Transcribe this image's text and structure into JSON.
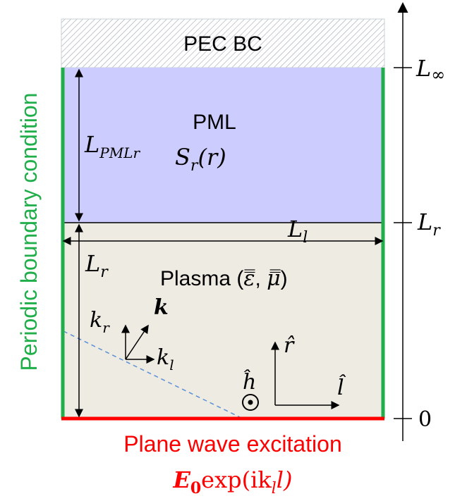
{
  "colors": {
    "pml_fill": "#ccccff",
    "plasma_fill": "#eeebe2",
    "periodic_green": "#1fae4a",
    "excitation_red": "#ff0000",
    "hatch": "#9aa6b0",
    "dashed_wave": "#5b8fd6"
  },
  "labels": {
    "pec": "PEC BC",
    "pml_title": "PML",
    "pml_thickness": "L",
    "pml_thickness_sub": "PMLr",
    "stretch": "S",
    "stretch_sub": "r",
    "stretch_arg": "(r)",
    "plasma": "Plasma (",
    "plasma_eps": "ε̿",
    "plasma_mu": "μ̿",
    "plasma_close": ")",
    "l_width": "L",
    "l_width_sub": "l",
    "l_height": "L",
    "l_height_sub": "r",
    "k_vec": "k",
    "k_r": "k",
    "k_r_sub": "r",
    "k_l": "k",
    "k_l_sub": "l",
    "unit_r": "r̂",
    "unit_l": "l̂",
    "unit_h": "ĥ",
    "periodic": "Periodic boundary condition",
    "excitation": "Plane wave excitation",
    "excitation_formula_E": "E",
    "excitation_formula_sub": "0",
    "excitation_formula_rest": "exp(ik",
    "excitation_formula_l_sub": "l",
    "excitation_formula_end": "l)"
  },
  "axis": {
    "tick_top": "L",
    "tick_top_sub": "∞",
    "tick_mid": "L",
    "tick_mid_sub": "r",
    "tick_zero": "0"
  }
}
